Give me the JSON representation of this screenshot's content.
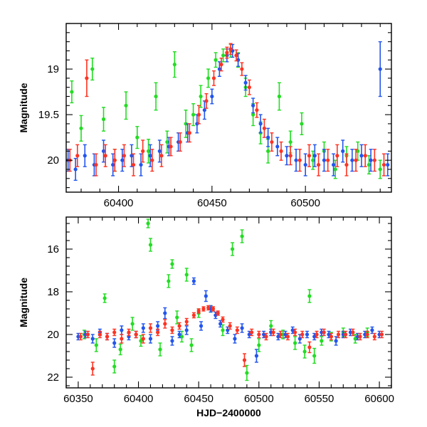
{
  "chart_data": [
    {
      "type": "scatter",
      "title": "",
      "xlabel": "",
      "ylabel": "Magnitude",
      "xlim": [
        60372,
        60546
      ],
      "ylim": [
        20.35,
        18.5
      ],
      "y_inverted": true,
      "grid": false,
      "xticks": [
        60400,
        60450,
        60500
      ],
      "xtick_labels": [
        "60400",
        "60450",
        "60500"
      ],
      "yticks": [
        19,
        19.5,
        20
      ],
      "ytick_labels": [
        "19",
        "19.5",
        "20"
      ],
      "series": [
        {
          "color": "#22dd22",
          "x": [
            60375,
            60380,
            60386,
            60392,
            60398,
            60404,
            60410,
            60416,
            60420,
            60426,
            60430,
            60436,
            60440,
            60444,
            60448,
            60452,
            60456,
            60460,
            60464,
            60468,
            60472,
            60476,
            60480,
            60486,
            60492,
            60498,
            60504,
            60510,
            60516,
            60522,
            60528,
            60534,
            60540
          ],
          "y": [
            19.25,
            19.65,
            19.0,
            19.55,
            20.0,
            19.4,
            19.75,
            19.9,
            19.3,
            19.8,
            18.95,
            19.6,
            19.5,
            19.3,
            19.1,
            18.9,
            18.85,
            18.8,
            18.9,
            19.2,
            19.5,
            19.7,
            19.9,
            19.3,
            19.8,
            19.6,
            20.0,
            19.9,
            20.1,
            19.95,
            19.9,
            20.05,
            20.1
          ],
          "err": [
            0.12,
            0.14,
            0.12,
            0.13,
            0.12,
            0.15,
            0.12,
            0.13,
            0.15,
            0.12,
            0.14,
            0.15,
            0.12,
            0.12,
            0.1,
            0.08,
            0.07,
            0.07,
            0.08,
            0.1,
            0.12,
            0.12,
            0.13,
            0.15,
            0.12,
            0.12,
            0.1,
            0.1,
            0.1,
            0.1,
            0.1,
            0.1,
            0.1
          ]
        },
        {
          "color": "#2255ee",
          "x": [
            60373,
            60377,
            60382,
            60387,
            60392,
            60397,
            60402,
            60407,
            60412,
            60417,
            60422,
            60427,
            60432,
            60437,
            60442,
            60446,
            60450,
            60454,
            60458,
            60461,
            60464,
            60468,
            60472,
            60476,
            60480,
            60485,
            60490,
            60495,
            60500,
            60505,
            60510,
            60515,
            60520,
            60525,
            60530,
            60535,
            60540,
            60544
          ],
          "y": [
            20.0,
            20.1,
            19.95,
            20.05,
            19.9,
            20.05,
            20.0,
            19.95,
            20.05,
            19.95,
            19.9,
            19.85,
            19.8,
            19.7,
            19.6,
            19.45,
            19.3,
            19.0,
            18.85,
            18.8,
            18.9,
            19.15,
            19.4,
            19.6,
            19.75,
            19.85,
            19.95,
            20.0,
            20.05,
            19.95,
            20.0,
            20.05,
            19.9,
            20.0,
            19.95,
            20.0,
            19.0,
            20.05
          ],
          "err": [
            0.12,
            0.12,
            0.12,
            0.12,
            0.12,
            0.12,
            0.12,
            0.12,
            0.12,
            0.12,
            0.12,
            0.1,
            0.1,
            0.1,
            0.1,
            0.1,
            0.08,
            0.08,
            0.07,
            0.07,
            0.07,
            0.08,
            0.08,
            0.1,
            0.1,
            0.1,
            0.1,
            0.12,
            0.12,
            0.12,
            0.12,
            0.12,
            0.12,
            0.12,
            0.12,
            0.12,
            0.3,
            0.12
          ]
        },
        {
          "color": "#ff3322",
          "x": [
            60374,
            60378,
            60383,
            60388,
            60393,
            60398,
            60403,
            60408,
            60413,
            60418,
            60423,
            60428,
            60433,
            60438,
            60443,
            60447,
            60451,
            60455,
            60458,
            60460,
            60463,
            60466,
            60470,
            60474,
            60478,
            60482,
            60487,
            60492,
            60497,
            60502,
            60507,
            60512,
            60517,
            60522,
            60527,
            60532,
            60537,
            60542
          ],
          "y": [
            20.0,
            19.95,
            19.1,
            20.05,
            19.95,
            20.0,
            19.95,
            20.05,
            19.9,
            20.0,
            19.95,
            19.85,
            19.8,
            19.7,
            19.5,
            19.35,
            19.1,
            18.95,
            18.82,
            18.78,
            18.85,
            19.0,
            19.2,
            19.45,
            19.65,
            19.8,
            19.9,
            19.95,
            20.0,
            19.95,
            20.05,
            20.0,
            19.95,
            20.05,
            20.0,
            19.95,
            20.0,
            20.05
          ],
          "err": [
            0.12,
            0.12,
            0.2,
            0.12,
            0.12,
            0.12,
            0.12,
            0.12,
            0.12,
            0.12,
            0.12,
            0.1,
            0.1,
            0.1,
            0.1,
            0.08,
            0.08,
            0.07,
            0.06,
            0.06,
            0.06,
            0.07,
            0.08,
            0.08,
            0.1,
            0.1,
            0.1,
            0.1,
            0.12,
            0.12,
            0.12,
            0.12,
            0.12,
            0.12,
            0.12,
            0.12,
            0.12,
            0.12
          ]
        }
      ]
    },
    {
      "type": "scatter",
      "title": "",
      "xlabel": "HJD−2400000",
      "ylabel": "Magnitude",
      "xlim": [
        60340,
        60610
      ],
      "ylim": [
        22.5,
        14.5
      ],
      "y_inverted": true,
      "grid": false,
      "xticks": [
        60350,
        60400,
        60450,
        60500,
        60550,
        60600
      ],
      "xtick_labels": [
        "60350",
        "60400",
        "60450",
        "60500",
        "60550",
        "60600"
      ],
      "yticks": [
        16,
        18,
        20,
        22
      ],
      "ytick_labels": [
        "16",
        "18",
        "20",
        "22"
      ],
      "series": [
        {
          "color": "#22dd22",
          "x": [
            60355,
            60365,
            60372,
            60380,
            60385,
            60395,
            60402,
            60408,
            60410,
            60418,
            60425,
            60428,
            60432,
            60436,
            60440,
            60444,
            60450,
            60460,
            60470,
            60478,
            60486,
            60490,
            60500,
            60510,
            60520,
            60530,
            60538,
            60542,
            60546,
            60552,
            60560,
            60570,
            60580,
            60590
          ],
          "y": [
            20.0,
            20.5,
            18.3,
            21.5,
            20.7,
            19.5,
            20.3,
            14.8,
            15.8,
            20.7,
            17.5,
            16.7,
            19.2,
            20.1,
            17.2,
            20.5,
            19.0,
            18.8,
            19.8,
            16.0,
            15.4,
            21.8,
            20.5,
            19.6,
            20.0,
            20.4,
            20.8,
            18.2,
            21.0,
            20.3,
            20.1,
            19.9,
            20.2,
            19.9
          ],
          "err": [
            0.2,
            0.3,
            0.2,
            0.3,
            0.25,
            0.3,
            0.25,
            0.2,
            0.3,
            0.3,
            0.3,
            0.2,
            0.3,
            0.25,
            0.3,
            0.3,
            0.2,
            0.15,
            0.25,
            0.3,
            0.3,
            0.35,
            0.3,
            0.25,
            0.2,
            0.3,
            0.3,
            0.3,
            0.35,
            0.2,
            0.2,
            0.2,
            0.2,
            0.2
          ]
        },
        {
          "color": "#2255ee",
          "x": [
            60350,
            60356,
            60362,
            60368,
            60374,
            60380,
            60386,
            60392,
            60398,
            60404,
            60410,
            60416,
            60422,
            60428,
            60434,
            60440,
            60446,
            60452,
            60456,
            60460,
            60464,
            60468,
            60474,
            60480,
            60486,
            60492,
            60498,
            60504,
            60510,
            60516,
            60522,
            60528,
            60534,
            60540,
            60546,
            60552,
            60558,
            60564,
            60570,
            60576,
            60582,
            60588,
            60594,
            60600
          ],
          "y": [
            20.1,
            20.0,
            20.2,
            19.9,
            20.1,
            20.4,
            19.8,
            20.1,
            20.0,
            19.7,
            20.2,
            19.6,
            19.0,
            20.3,
            20.0,
            19.8,
            17.5,
            19.6,
            18.2,
            18.8,
            19.1,
            19.5,
            19.8,
            20.2,
            19.7,
            20.0,
            21.0,
            20.0,
            19.9,
            20.1,
            20.0,
            19.8,
            20.2,
            20.0,
            20.1,
            19.9,
            20.0,
            20.3,
            20.0,
            19.9,
            20.1,
            20.0,
            19.8,
            20.0
          ],
          "err": [
            0.15,
            0.15,
            0.2,
            0.15,
            0.15,
            0.2,
            0.2,
            0.15,
            0.15,
            0.2,
            0.2,
            0.2,
            0.25,
            0.2,
            0.15,
            0.2,
            0.15,
            0.2,
            0.25,
            0.15,
            0.15,
            0.15,
            0.15,
            0.2,
            0.2,
            0.15,
            0.3,
            0.15,
            0.15,
            0.15,
            0.15,
            0.15,
            0.2,
            0.15,
            0.15,
            0.15,
            0.15,
            0.2,
            0.15,
            0.15,
            0.15,
            0.15,
            0.15,
            0.15
          ]
        },
        {
          "color": "#ff3322",
          "x": [
            60352,
            60358,
            60362,
            60368,
            60374,
            60380,
            60386,
            60392,
            60398,
            60404,
            60410,
            60416,
            60422,
            60428,
            60434,
            60440,
            60446,
            60450,
            60454,
            60458,
            60462,
            60466,
            60470,
            60476,
            60482,
            60488,
            60494,
            60500,
            60506,
            60512,
            60518,
            60524,
            60530,
            60536,
            60542,
            60548,
            60554,
            60560,
            60566,
            60572,
            60578,
            60584,
            60590,
            60596,
            60602
          ],
          "y": [
            20.1,
            20.0,
            21.6,
            20.0,
            20.1,
            19.9,
            20.2,
            19.9,
            20.0,
            20.2,
            19.7,
            19.9,
            19.5,
            19.8,
            19.6,
            19.4,
            19.1,
            18.9,
            18.8,
            18.75,
            18.8,
            19.0,
            19.3,
            19.6,
            19.8,
            21.2,
            19.9,
            20.0,
            20.1,
            19.9,
            20.0,
            20.1,
            19.9,
            20.0,
            20.6,
            20.0,
            19.9,
            20.1,
            20.0,
            20.0,
            19.9,
            20.1,
            20.0,
            20.1,
            20.0
          ],
          "err": [
            0.15,
            0.15,
            0.3,
            0.15,
            0.15,
            0.15,
            0.2,
            0.15,
            0.15,
            0.2,
            0.2,
            0.15,
            0.2,
            0.15,
            0.15,
            0.15,
            0.12,
            0.1,
            0.1,
            0.1,
            0.1,
            0.1,
            0.12,
            0.15,
            0.15,
            0.3,
            0.15,
            0.15,
            0.15,
            0.15,
            0.15,
            0.15,
            0.15,
            0.15,
            0.25,
            0.15,
            0.15,
            0.15,
            0.15,
            0.15,
            0.15,
            0.15,
            0.15,
            0.15,
            0.15
          ]
        }
      ]
    }
  ]
}
